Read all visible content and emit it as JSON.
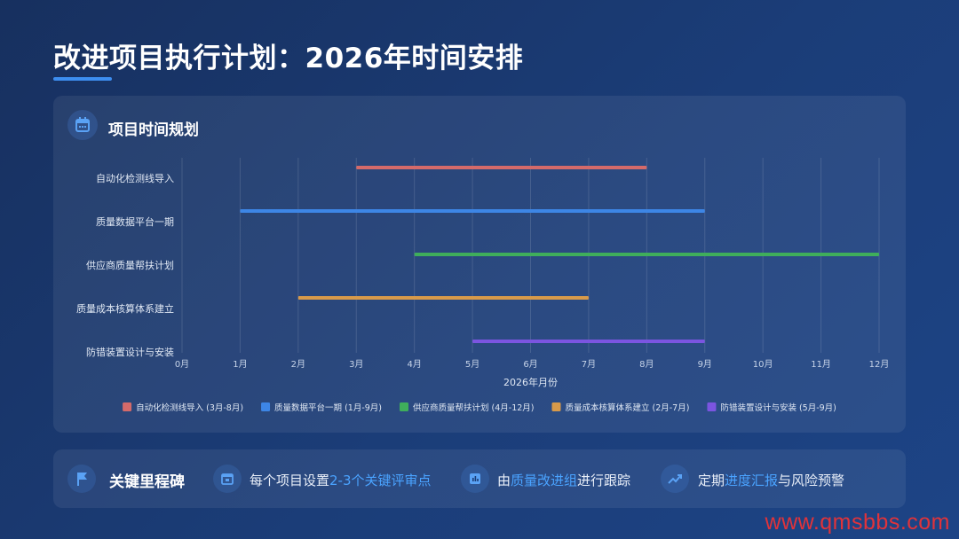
{
  "page": {
    "title": "改进项目执行计划：2026年时间安排",
    "colors": {
      "accent": "#3d8ef0",
      "highlight": "#4aa3ff"
    }
  },
  "panel": {
    "title": "项目时间规划",
    "icon": "calendar-icon"
  },
  "chart_data": {
    "type": "gantt",
    "xlabel": "2026年月份",
    "xlim": [
      0,
      12
    ],
    "x_ticks": [
      "0月",
      "1月",
      "2月",
      "3月",
      "4月",
      "5月",
      "6月",
      "7月",
      "8月",
      "9月",
      "10月",
      "11月",
      "12月"
    ],
    "grid": true,
    "legend_position": "bottom",
    "tasks": [
      {
        "name": "自动化检测线导入",
        "start": 3,
        "end": 8,
        "color": "#d46a6a",
        "legend": "自动化检测线导入 (3月-8月)"
      },
      {
        "name": "质量数据平台一期",
        "start": 1,
        "end": 9,
        "color": "#3d86e6",
        "legend": "质量数据平台一期 (1月-9月)"
      },
      {
        "name": "供应商质量帮扶计划",
        "start": 4,
        "end": 12,
        "color": "#3fae5b",
        "legend": "供应商质量帮扶计划 (4月-12月)"
      },
      {
        "name": "质量成本核算体系建立",
        "start": 2,
        "end": 7,
        "color": "#d89a4a",
        "legend": "质量成本核算体系建立 (2月-7月)"
      },
      {
        "name": "防错装置设计与安装",
        "start": 5,
        "end": 9,
        "color": "#7b55e0",
        "legend": "防错装置设计与安装 (5月-9月)"
      }
    ]
  },
  "milestones": {
    "title": "关键里程碑",
    "icon": "flag-icon",
    "items": [
      {
        "icon": "calendar-check-icon",
        "pre": "每个项目设置",
        "hl": "2-3个关键评审点",
        "post": ""
      },
      {
        "icon": "chart-board-icon",
        "pre": "由",
        "hl": "质量改进组",
        "post": "进行跟踪"
      },
      {
        "icon": "trend-up-icon",
        "pre": "定期",
        "hl": "进度汇报",
        "post": "与风险预警"
      }
    ]
  },
  "watermark": "www.qmsbbs.com"
}
